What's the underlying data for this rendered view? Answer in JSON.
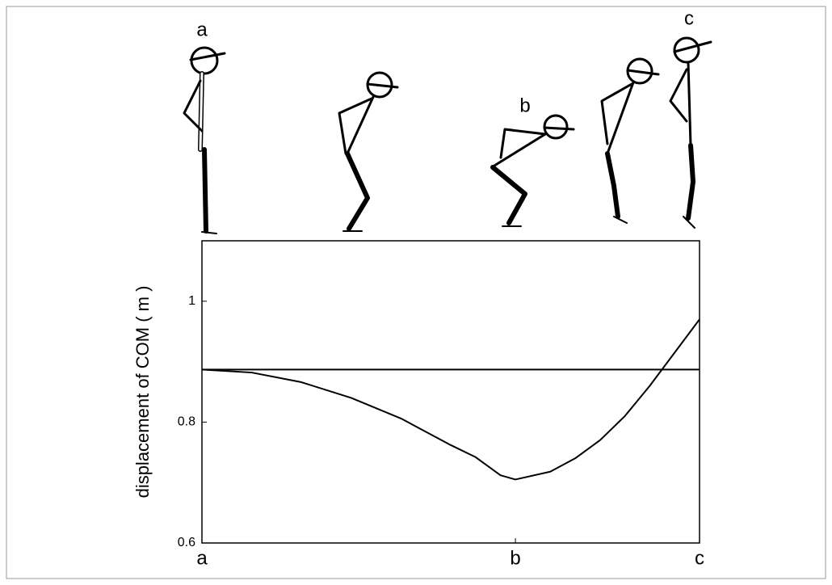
{
  "figure_labels": [
    "a",
    "b",
    "c"
  ],
  "chart_data": {
    "type": "line",
    "y_label": "displacement of COM ( m )",
    "x": [
      0,
      10,
      20,
      30,
      40,
      50,
      55,
      60,
      63,
      70,
      75,
      80,
      85,
      90,
      95,
      100
    ],
    "series": [
      {
        "color": "#000000",
        "values": [
          0.887,
          0.882,
          0.866,
          0.84,
          0.806,
          0.762,
          0.742,
          0.712,
          0.705,
          0.718,
          0.74,
          0.77,
          0.81,
          0.86,
          0.915,
          0.97
        ]
      }
    ],
    "reference_line": 0.887,
    "xlim": [
      0,
      100
    ],
    "xticks": [
      {
        "value": 0,
        "label": "a"
      },
      {
        "value": 63,
        "label": "b"
      },
      {
        "value": 100,
        "label": "c"
      }
    ],
    "ylim": [
      0.6,
      1.1
    ],
    "yticks": [
      0.6,
      0.8,
      1
    ],
    "grid": false
  }
}
